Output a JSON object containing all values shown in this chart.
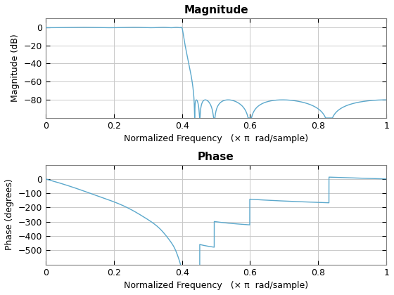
{
  "mag_title": "Magnitude",
  "phase_title": "Phase",
  "xlabel": "Normalized Frequency   (× π  rad/sample)",
  "mag_ylabel": "Magnitude (dB)",
  "phase_ylabel": "Phase (degrees)",
  "line_color": "#5BA8CC",
  "background_color": "#ffffff",
  "grid_color": "#c8c8c8",
  "mag_ylim": [
    -100,
    10
  ],
  "phase_ylim": [
    -600,
    100
  ],
  "xlim": [
    0,
    1
  ],
  "filter_order": 10,
  "filter_cutoff": 0.4,
  "filter_rp": 0.5,
  "filter_rs": 80
}
